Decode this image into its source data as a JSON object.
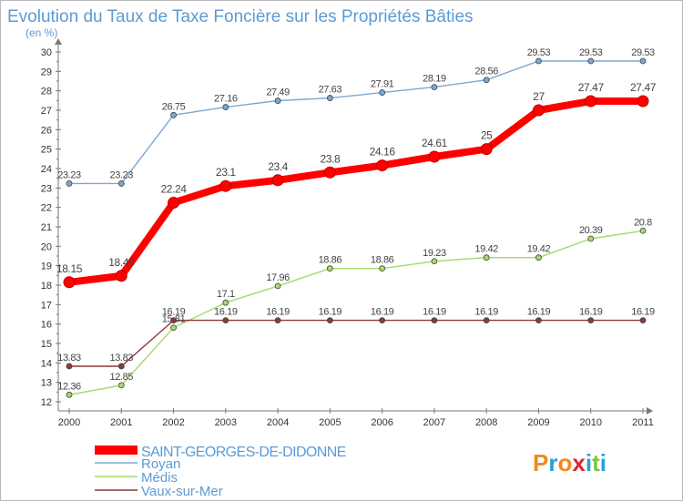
{
  "chart_data": {
    "type": "line",
    "title": "Evolution du Taux de Taxe Foncière sur les Propriétés Bâties",
    "subtitle": "(en %)",
    "xlabel": "",
    "ylabel": "",
    "x": [
      "2000",
      "2001",
      "2002",
      "2003",
      "2004",
      "2005",
      "2006",
      "2007",
      "2008",
      "2009",
      "2010",
      "2011"
    ],
    "ylim": [
      12,
      30
    ],
    "yticks": [
      "12",
      "13",
      "14",
      "15",
      "16",
      "17",
      "18",
      "19",
      "20",
      "21",
      "22",
      "23",
      "24",
      "25",
      "26",
      "27",
      "28",
      "29",
      "30"
    ],
    "grid": false,
    "legend_position": "bottom-left",
    "series": [
      {
        "name": "SAINT-GEORGES-DE-DIDONNE",
        "color": "#ff0000",
        "values": [
          18.15,
          18.48,
          22.24,
          23.1,
          23.4,
          23.8,
          24.16,
          24.61,
          25,
          27,
          27.47,
          27.47
        ],
        "labels": [
          "18.15",
          "18.48",
          "22.24",
          "23.1",
          "23.4",
          "23.8",
          "24.16",
          "24.61",
          "25",
          "27",
          "27.47",
          "27.47"
        ]
      },
      {
        "name": "Royan",
        "color": "#7ba7d4",
        "values": [
          23.23,
          23.23,
          26.75,
          27.16,
          27.49,
          27.63,
          27.91,
          28.19,
          28.56,
          29.53,
          29.53,
          29.53
        ],
        "labels": [
          "23.23",
          "23.23",
          "26.75",
          "27.16",
          "27.49",
          "27.63",
          "27.91",
          "28.19",
          "28.56",
          "29.53",
          "29.53",
          "29.53"
        ]
      },
      {
        "name": "Médis",
        "color": "#a6d86b",
        "values": [
          12.36,
          12.85,
          15.81,
          17.1,
          17.96,
          18.86,
          18.86,
          19.23,
          19.42,
          19.42,
          20.39,
          20.8
        ],
        "labels": [
          "12.36",
          "12.85",
          "15.81",
          "17.1",
          "17.96",
          "18.86",
          "18.86",
          "19.23",
          "19.42",
          "19.42",
          "20.39",
          "20.8"
        ]
      },
      {
        "name": "Vaux-sur-Mer",
        "color": "#8b3a3a",
        "values": [
          13.83,
          13.83,
          16.19,
          16.19,
          16.19,
          16.19,
          16.19,
          16.19,
          16.19,
          16.19,
          16.19,
          16.19
        ],
        "labels": [
          "13.83",
          "13.83",
          "16.19",
          "16.19",
          "16.19",
          "16.19",
          "16.19",
          "16.19",
          "16.19",
          "16.19",
          "16.19",
          "16.19"
        ]
      }
    ]
  },
  "branding": {
    "logo_text": "Proxiti",
    "logo_colors": [
      "#f08a1c",
      "#2a9fd6",
      "#f08a1c",
      "#e0242b",
      "#2a9fd6",
      "#7fc241",
      "#2a9fd6"
    ]
  }
}
